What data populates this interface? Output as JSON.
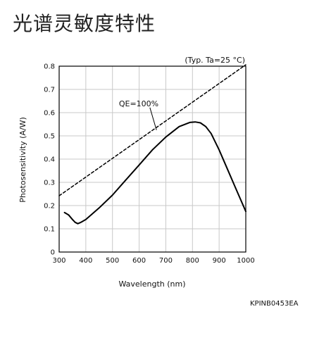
{
  "page": {
    "title": "光谱灵敏度特性",
    "doc_code": "KPINB0453EA"
  },
  "chart_data": {
    "type": "line",
    "xlabel": "Wavelength (nm)",
    "ylabel": "Photosensitivity (A/W)",
    "condition": "(Typ. Ta=25 °C)",
    "xlim": [
      300,
      1000
    ],
    "ylim": [
      0,
      0.8
    ],
    "x_ticks": [
      300,
      400,
      500,
      600,
      700,
      800,
      900,
      1000
    ],
    "y_ticks": [
      0,
      0.1,
      0.2,
      0.3,
      0.4,
      0.5,
      0.6,
      0.7,
      0.8
    ],
    "y_tick_labels": [
      "0",
      "0.1",
      "0.2",
      "0.3",
      "0.4",
      "0.5",
      "0.6",
      "0.7",
      "0.8"
    ],
    "grid": true,
    "annotation": {
      "text": "QE=100%",
      "x": 540,
      "y": 0.64,
      "arrow_to_x": 665,
      "arrow_to_y": 0.525
    },
    "series": [
      {
        "style": "solid",
        "x": [
          320,
          335,
          350,
          360,
          370,
          380,
          400,
          450,
          500,
          550,
          600,
          650,
          700,
          750,
          790,
          810,
          830,
          850,
          870,
          900,
          930,
          960,
          1000
        ],
        "y": [
          0.17,
          0.16,
          0.14,
          0.128,
          0.122,
          0.127,
          0.14,
          0.19,
          0.245,
          0.31,
          0.375,
          0.44,
          0.495,
          0.54,
          0.558,
          0.56,
          0.556,
          0.54,
          0.51,
          0.44,
          0.36,
          0.28,
          0.175
        ]
      },
      {
        "name": "QE=100%",
        "style": "dashed",
        "x": [
          300,
          1000
        ],
        "y": [
          0.242,
          0.806
        ]
      }
    ]
  }
}
